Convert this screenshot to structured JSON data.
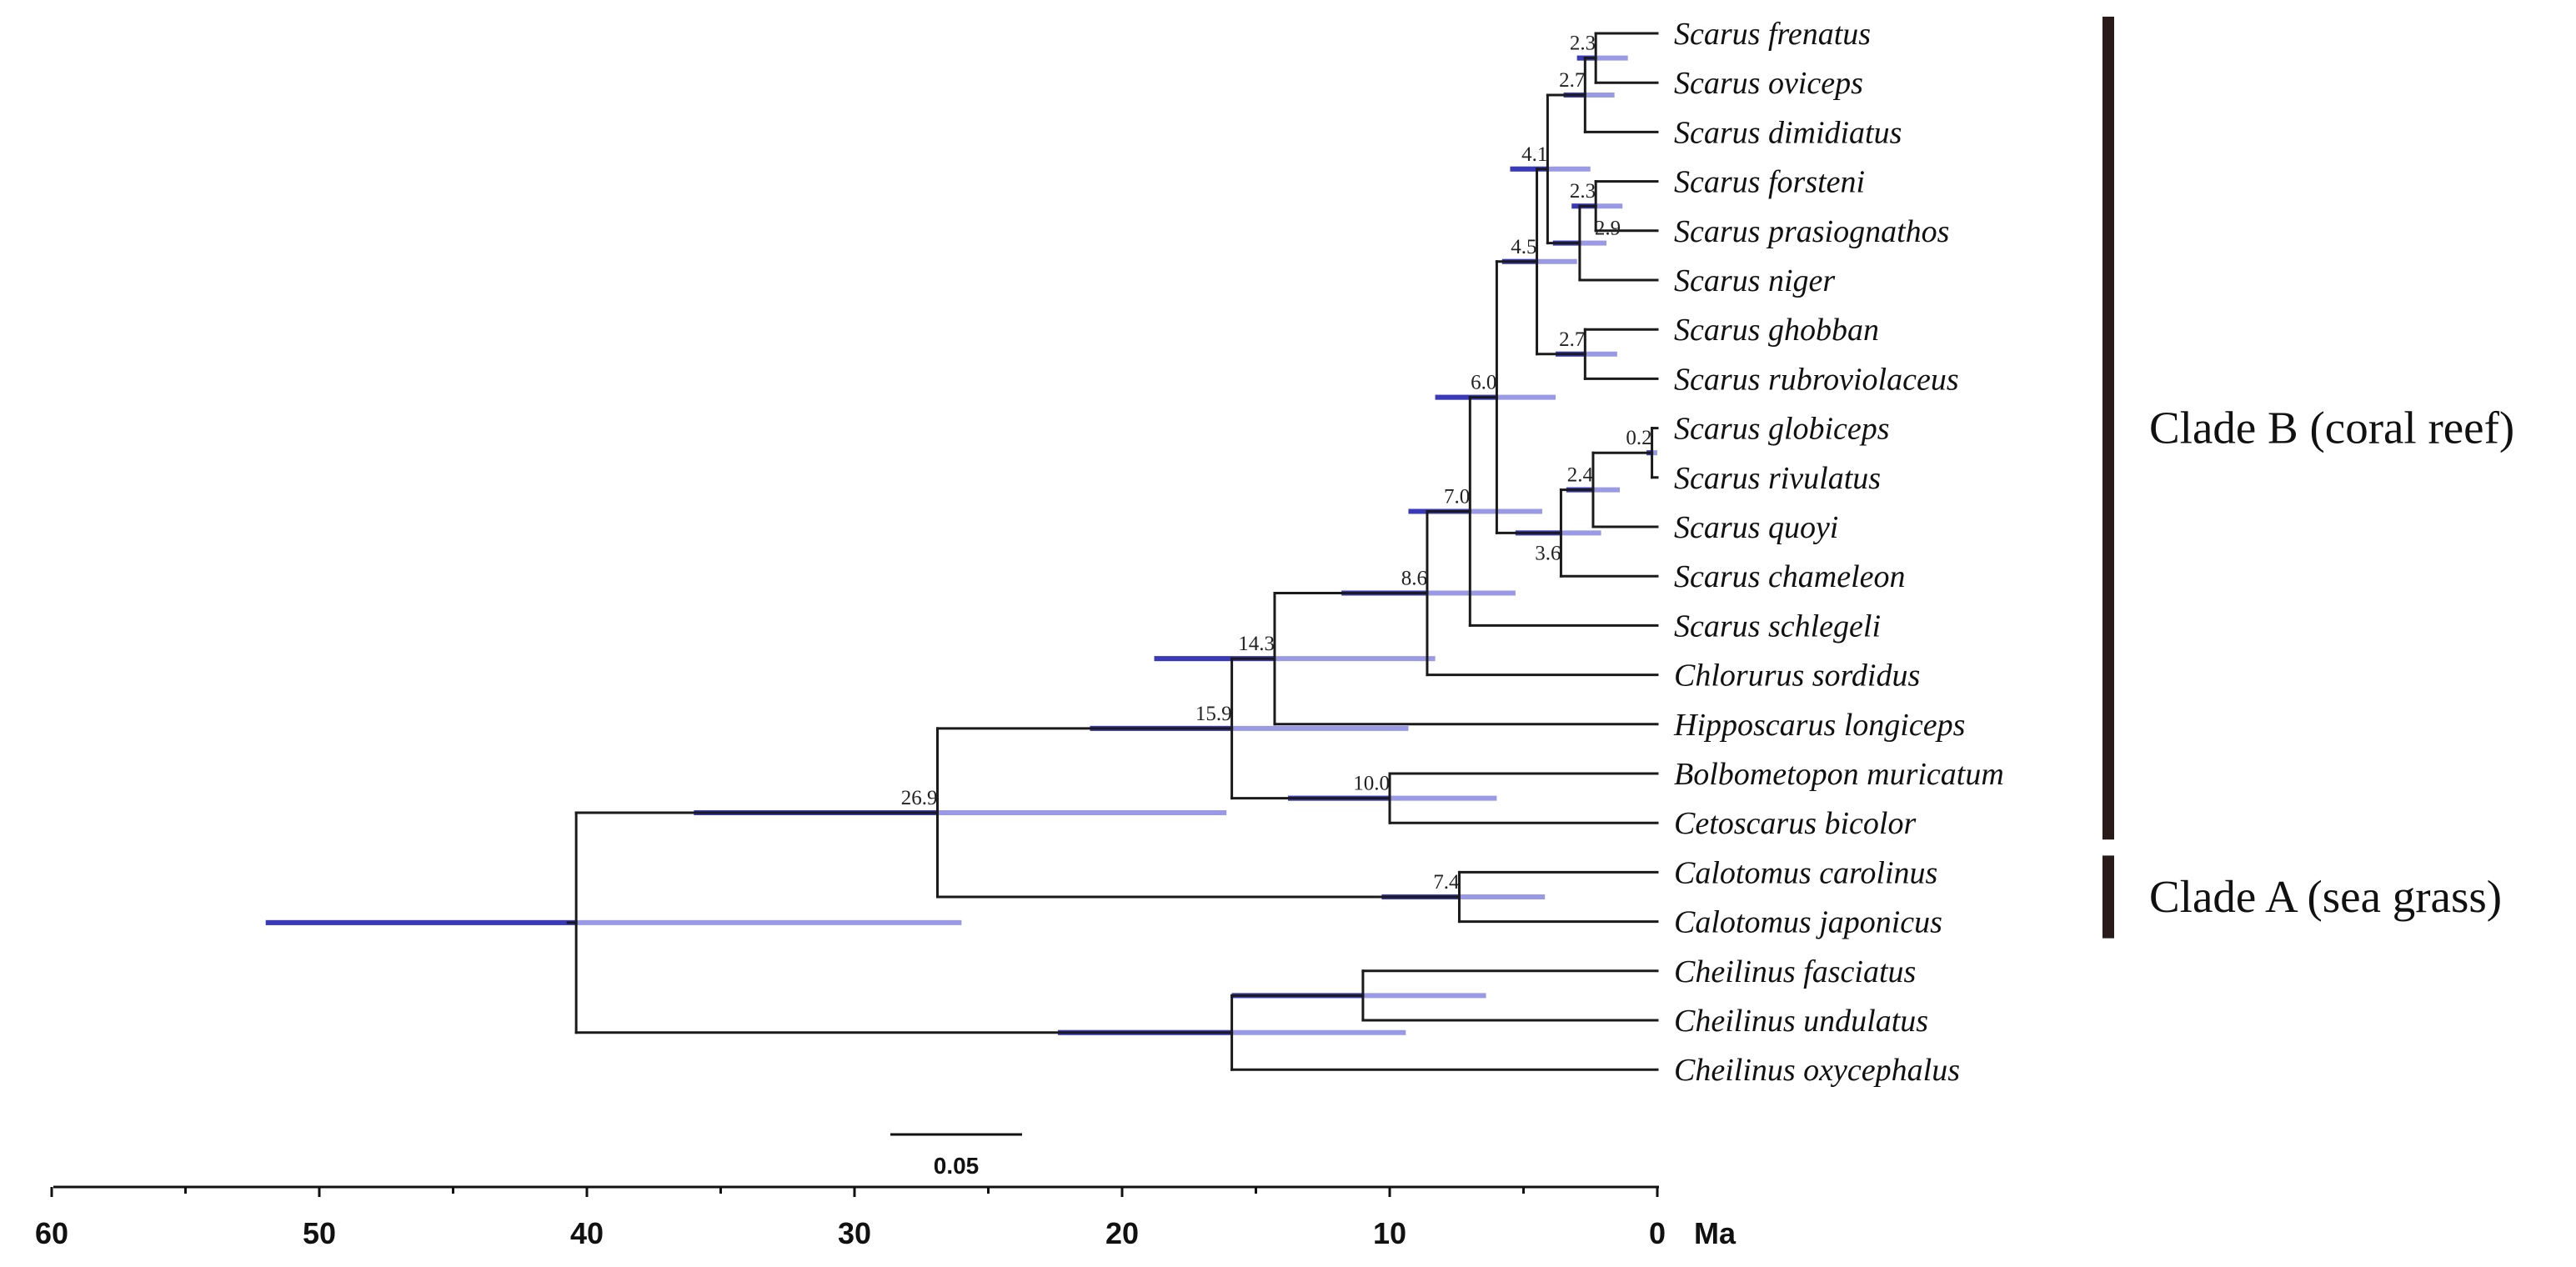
{
  "tree": {
    "title": "",
    "taxa": [
      "Scarus frenatus",
      "Scarus oviceps",
      "Scarus dimidiatus",
      "Scarus forsteni",
      "Scarus prasiognathos",
      "Scarus niger",
      "Scarus ghobban",
      "Scarus rubroviolaceus",
      "Scarus globiceps",
      "Scarus rivulatus",
      "Scarus quoyi",
      "Scarus chameleon",
      "Scarus schlegeli",
      "Chlorurus sordidus",
      "Hipposcarus longiceps",
      "Bolbometopon muricatum",
      "Cetoscarus bicolor",
      "Calotomus carolinus",
      "Calotomus japonicus",
      "Cheilinus fasciatus",
      "Cheilinus undulatus",
      "Cheilinus oxycephalus"
    ],
    "nodes": [
      {
        "id": "n_fren_ovi",
        "age": 2.3,
        "label": "2.3",
        "children": [
          0,
          1
        ],
        "hpd": [
          1.1,
          3.0
        ]
      },
      {
        "id": "n_dimid",
        "age": 2.7,
        "label": "2.7",
        "children": [
          "n_fren_ovi",
          2
        ],
        "hpd": [
          1.6,
          3.5
        ]
      },
      {
        "id": "n_fors_pras",
        "age": 2.3,
        "label": "2.3",
        "children": [
          3,
          4
        ],
        "hpd": [
          1.3,
          3.2
        ]
      },
      {
        "id": "n_niger",
        "age": 2.9,
        "label": "2.9",
        "children": [
          "n_fors_pras",
          5
        ],
        "hpd": [
          1.9,
          3.9
        ]
      },
      {
        "id": "n_ghob_rubr",
        "age": 2.7,
        "label": "2.7",
        "children": [
          6,
          7
        ],
        "hpd": [
          1.5,
          3.8
        ]
      },
      {
        "id": "n_41",
        "age": 4.1,
        "label": "4.1",
        "children": [
          "n_dimid",
          "n_niger"
        ],
        "hpd": [
          2.5,
          5.5
        ]
      },
      {
        "id": "n_45",
        "age": 4.5,
        "label": "4.5",
        "children": [
          "n_41",
          "n_ghob_rubr"
        ],
        "hpd": [
          3.0,
          5.8
        ]
      },
      {
        "id": "n_glob_riv",
        "age": 0.2,
        "label": "0.2",
        "children": [
          8,
          9
        ],
        "hpd": [
          0.0,
          0.4
        ]
      },
      {
        "id": "n_quoyi",
        "age": 2.4,
        "label": "2.4",
        "children": [
          "n_glob_riv",
          10
        ],
        "hpd": [
          1.4,
          3.4
        ]
      },
      {
        "id": "n_cham",
        "age": 3.6,
        "label": "3.6",
        "children": [
          "n_quoyi",
          11
        ],
        "hpd": [
          2.1,
          5.3
        ]
      },
      {
        "id": "n_60",
        "age": 6.0,
        "label": "6.0",
        "children": [
          "n_45",
          "n_cham"
        ],
        "hpd": [
          3.8,
          8.3
        ]
      },
      {
        "id": "n_70",
        "age": 7.0,
        "label": "7.0",
        "children": [
          "n_60",
          12
        ],
        "hpd": [
          4.3,
          9.3
        ]
      },
      {
        "id": "n_86",
        "age": 8.6,
        "label": "8.6",
        "children": [
          "n_70",
          13
        ],
        "hpd": [
          5.3,
          11.8
        ]
      },
      {
        "id": "n_143",
        "age": 14.3,
        "label": "14.3",
        "children": [
          "n_86",
          14
        ],
        "hpd": [
          8.3,
          18.8
        ]
      },
      {
        "id": "n_100",
        "age": 10.0,
        "label": "10.0",
        "children": [
          15,
          16
        ],
        "hpd": [
          6.0,
          13.8
        ]
      },
      {
        "id": "n_159",
        "age": 15.9,
        "label": "15.9",
        "children": [
          "n_143",
          "n_100"
        ],
        "hpd": [
          9.3,
          21.2
        ]
      },
      {
        "id": "n_74",
        "age": 7.4,
        "label": "7.4",
        "children": [
          17,
          18
        ],
        "hpd": [
          4.2,
          10.3
        ]
      },
      {
        "id": "n_269",
        "age": 26.9,
        "label": "26.9",
        "children": [
          "n_159",
          "n_74"
        ],
        "hpd": [
          16.1,
          36.0
        ]
      },
      {
        "id": "n_cheil_fu",
        "age": 11.0,
        "label": "",
        "children": [
          19,
          20
        ],
        "hpd": [
          6.4,
          15.9
        ]
      },
      {
        "id": "n_cheil",
        "age": 15.9,
        "label": "",
        "children": [
          "n_cheil_fu",
          21
        ],
        "hpd": [
          9.4,
          22.4
        ]
      },
      {
        "id": "n_root",
        "age": 40.4,
        "label": "",
        "children": [
          "n_269",
          "n_cheil"
        ],
        "hpd": [
          26.0,
          52.0
        ]
      }
    ]
  },
  "clades": [
    {
      "label": "Clade B (coral reef)",
      "from": 0,
      "to": 16
    },
    {
      "label": "Clade A (sea grass)",
      "from": 17,
      "to": 18
    }
  ],
  "axis": {
    "ticks": [
      "60",
      "50",
      "40",
      "30",
      "20",
      "10",
      "0"
    ],
    "tick_values": [
      60,
      50,
      40,
      30,
      20,
      10,
      0
    ],
    "unit": "Ma"
  },
  "scale_bar": {
    "label": "0.05"
  },
  "colors": {
    "hpd": "#9999e6",
    "hpd_dark": "#3a3ab8",
    "branch": "#1a1a1a",
    "clade_bar": "#2a1b1b"
  }
}
